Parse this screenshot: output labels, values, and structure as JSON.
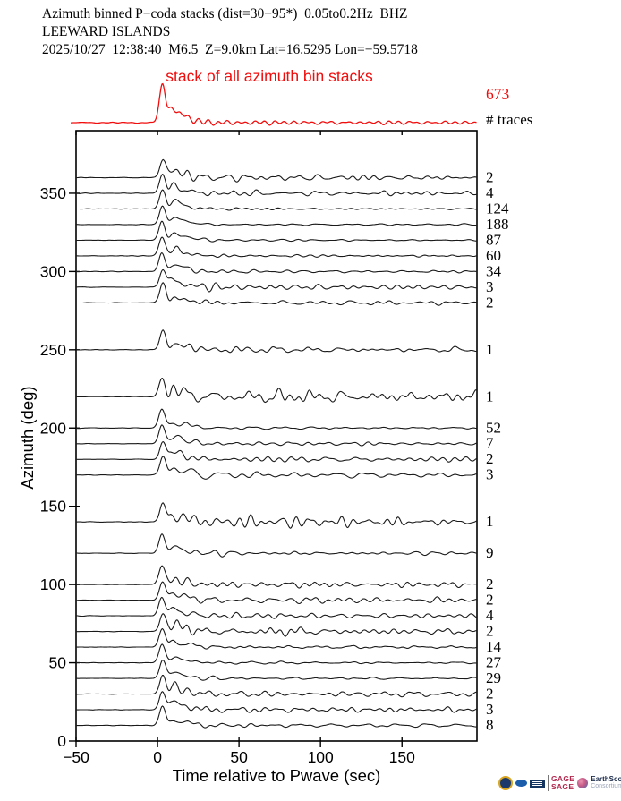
{
  "header": {
    "line1": "Azimuth binned P−coda stacks (dist=30−95*)  0.05to0.2Hz  BHZ",
    "line2": "LEEWARD ISLANDS",
    "line3": "2025/10/27  12:38:40  M6.5  Z=9.0km Lat=16.5295 Lon=−59.5718"
  },
  "overlay": {
    "label": "stack of all azimuth bin stacks",
    "total": "673",
    "traces_heading": "# traces"
  },
  "axes": {
    "xlabel": "Time relative to Pwave (sec)",
    "ylabel": "Azimuth (deg)"
  },
  "colors": {
    "accent_red": "#f20d0d",
    "trace_black": "#1a1a1a"
  },
  "footer_logos": {
    "gage": "GAGE",
    "sage": "SAGE",
    "earthscope": "EarthScope",
    "consortium": "Consortium"
  },
  "chart_data": {
    "type": "line",
    "subtype": "seismic_azimuth_binned_waveform_stacks",
    "title": "Azimuth binned P−coda stacks (dist=30−95*) 0.05to0.2Hz BHZ",
    "xlabel": "Time relative to Pwave (sec)",
    "ylabel": "Azimuth (deg)",
    "xlim": [
      -50,
      196
    ],
    "ylim": [
      0,
      390
    ],
    "x_ticks": [
      -50,
      0,
      50,
      100,
      150
    ],
    "y_ticks": [
      0,
      50,
      100,
      150,
      200,
      250,
      300,
      350
    ],
    "grid": false,
    "legend_position": "none",
    "counts_column_heading": "# traces",
    "stack_of_all_bins": {
      "label": "stack of all azimuth bin stacks",
      "n_traces": 673,
      "noise": 0.09,
      "seed": 5
    },
    "bins": [
      {
        "az": 360,
        "count": 2,
        "noise": 0.24,
        "seed": 11
      },
      {
        "az": 350,
        "count": 4,
        "noise": 0.21,
        "seed": 12
      },
      {
        "az": 340,
        "count": 124,
        "noise": 0.09,
        "seed": 13
      },
      {
        "az": 330,
        "count": 188,
        "noise": 0.08,
        "seed": 14
      },
      {
        "az": 320,
        "count": 87,
        "noise": 0.09,
        "seed": 15
      },
      {
        "az": 310,
        "count": 60,
        "noise": 0.1,
        "seed": 16
      },
      {
        "az": 300,
        "count": 34,
        "noise": 0.11,
        "seed": 17
      },
      {
        "az": 290,
        "count": 3,
        "noise": 0.23,
        "seed": 18
      },
      {
        "az": 280,
        "count": 2,
        "noise": 0.26,
        "seed": 19
      },
      {
        "az": 250,
        "count": 1,
        "noise": 0.22,
        "seed": 20
      },
      {
        "az": 220,
        "count": 1,
        "noise": 0.52,
        "seed": 21
      },
      {
        "az": 200,
        "count": 52,
        "noise": 0.1,
        "seed": 22
      },
      {
        "az": 190,
        "count": 7,
        "noise": 0.17,
        "seed": 23
      },
      {
        "az": 180,
        "count": 2,
        "noise": 0.26,
        "seed": 24
      },
      {
        "az": 170,
        "count": 3,
        "noise": 0.23,
        "seed": 25
      },
      {
        "az": 140,
        "count": 1,
        "noise": 0.4,
        "seed": 26
      },
      {
        "az": 120,
        "count": 9,
        "noise": 0.16,
        "seed": 27
      },
      {
        "az": 100,
        "count": 2,
        "noise": 0.26,
        "seed": 28
      },
      {
        "az": 90,
        "count": 2,
        "noise": 0.26,
        "seed": 29
      },
      {
        "az": 80,
        "count": 4,
        "noise": 0.21,
        "seed": 30
      },
      {
        "az": 70,
        "count": 2,
        "noise": 0.26,
        "seed": 31
      },
      {
        "az": 60,
        "count": 14,
        "noise": 0.14,
        "seed": 32
      },
      {
        "az": 50,
        "count": 27,
        "noise": 0.12,
        "seed": 33
      },
      {
        "az": 40,
        "count": 29,
        "noise": 0.12,
        "seed": 34
      },
      {
        "az": 30,
        "count": 2,
        "noise": 0.26,
        "seed": 35
      },
      {
        "az": 20,
        "count": 3,
        "noise": 0.23,
        "seed": 36
      },
      {
        "az": 10,
        "count": 8,
        "noise": 0.17,
        "seed": 37
      }
    ],
    "waveform_model": {
      "peak_amplitude_deg": 12,
      "main_peak_time_s": 3,
      "main_peak_sigma_s": 1.9,
      "secondary_bumps_s": [
        9.8,
        15.5,
        22
      ],
      "bandpass_hz": [
        0.05,
        0.2
      ],
      "pre_arrival_flat_until_s": -3
    }
  }
}
